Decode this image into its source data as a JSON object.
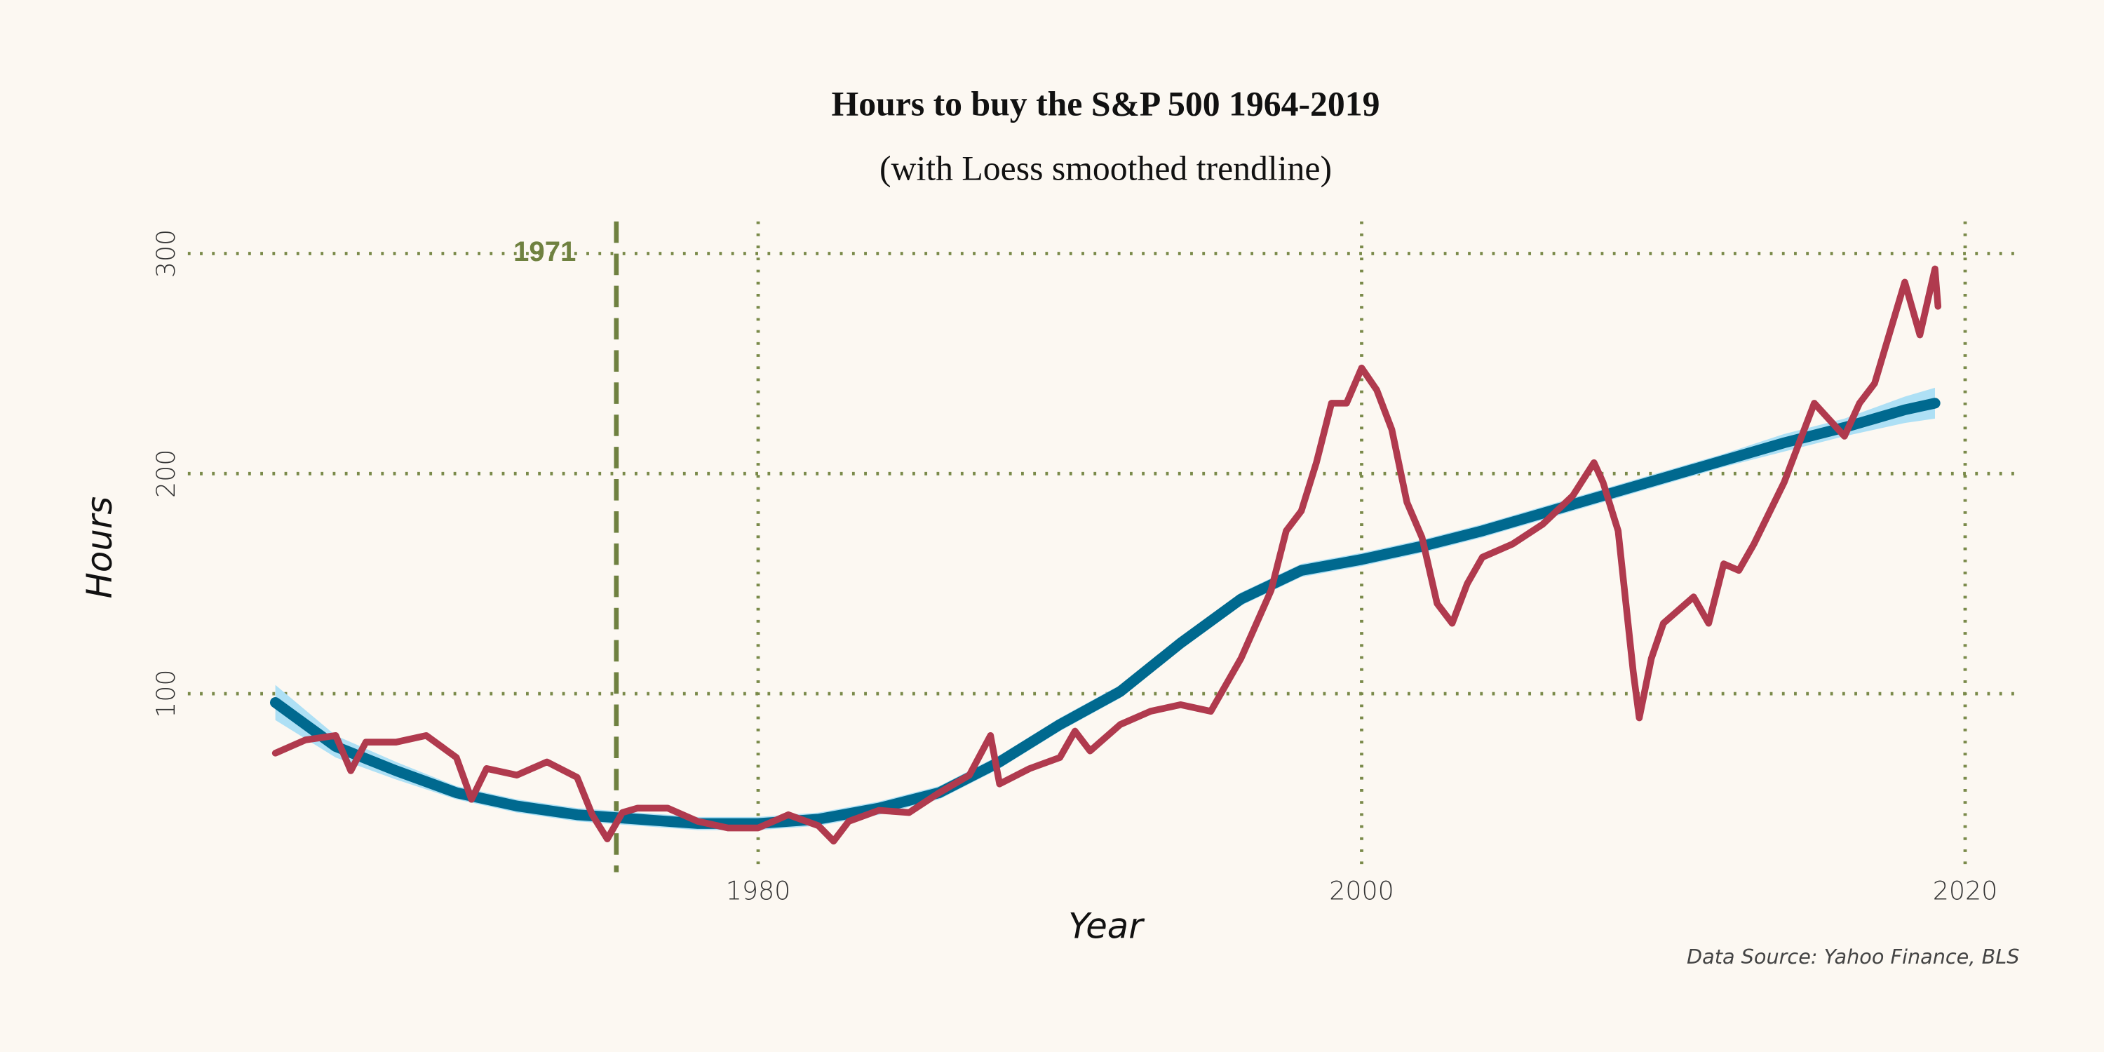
{
  "chart_data": {
    "type": "line",
    "title": "Hours to buy the S&P 500 1964-2019",
    "subtitle": "(with Loess smoothed trendline)",
    "x_label": "Year",
    "y_label": "Hours",
    "caption": "Data Source: Yahoo Finance, BLS",
    "xlim": [
      1961.1,
      2021.8
    ],
    "ylim": [
      18.9,
      314.6
    ],
    "xticks": [
      1980,
      2000,
      2020
    ],
    "yticks": [
      100,
      200,
      300
    ],
    "grid": true,
    "annotation": {
      "label": "1971",
      "x": 1975.3,
      "color": "#6f8140"
    },
    "band": {
      "color": "#aee0f5",
      "x": [
        1964,
        1966,
        1968,
        1970,
        1972,
        1974,
        1976,
        1978,
        1980,
        1982,
        1984,
        1986,
        1988,
        1990,
        1992,
        1994,
        1996,
        1998,
        2000,
        2002,
        2004,
        2006,
        2008,
        2010,
        2012,
        2014,
        2016,
        2018,
        2019
      ],
      "upper": [
        104,
        81,
        69,
        58,
        52,
        48,
        46,
        44,
        44,
        46,
        51,
        58,
        72,
        89,
        104,
        126,
        146,
        159,
        164,
        170,
        177,
        185,
        193,
        201,
        209,
        218,
        225,
        235,
        239
      ],
      "lower": [
        88,
        71,
        61,
        52,
        46,
        42,
        40,
        38,
        38,
        40,
        45,
        52,
        66,
        83,
        98,
        120,
        140,
        153,
        158,
        164,
        171,
        179,
        187,
        195,
        203,
        210,
        217,
        223,
        225
      ]
    },
    "series": [
      {
        "name": "Hours",
        "color": "#b03a4e",
        "x": [
          1964,
          1965,
          1966,
          1966.5,
          1967,
          1968,
          1969,
          1970,
          1970.5,
          1971,
          1972,
          1973,
          1974,
          1974.5,
          1975,
          1975.5,
          1976,
          1977,
          1978,
          1979,
          1980,
          1981,
          1982,
          1982.5,
          1983,
          1984,
          1985,
          1986,
          1987,
          1987.7,
          1988,
          1989,
          1990,
          1990.5,
          1991,
          1992,
          1993,
          1994,
          1995,
          1996,
          1997,
          1997.5,
          1998,
          1998.5,
          1999,
          1999.5,
          2000,
          2000.5,
          2001,
          2001.5,
          2002,
          2002.5,
          2003,
          2003.5,
          2004,
          2005,
          2006,
          2007,
          2007.7,
          2008,
          2008.5,
          2009,
          2009.2,
          2009.6,
          2010,
          2011,
          2011.5,
          2012,
          2012.5,
          2013,
          2014,
          2015,
          2016,
          2016.5,
          2017,
          2018,
          2018.5,
          2019,
          2019.1
        ],
        "values": [
          73,
          79,
          81,
          65,
          78,
          78,
          81,
          71,
          52,
          66,
          63,
          69,
          62,
          45,
          34,
          46,
          48,
          48,
          42,
          39,
          39,
          45,
          40,
          33,
          42,
          47,
          46,
          55,
          63,
          81,
          59,
          66,
          71,
          83,
          74,
          86,
          92,
          95,
          92,
          116,
          147,
          174,
          183,
          205,
          232,
          232,
          248,
          238,
          220,
          187,
          171,
          141,
          132,
          150,
          162,
          168,
          177,
          190,
          205,
          196,
          174,
          110,
          89,
          116,
          132,
          144,
          132,
          159,
          156,
          168,
          196,
          232,
          217,
          232,
          241,
          287,
          263,
          293,
          276
        ]
      },
      {
        "name": "Loess trend",
        "color": "#00698f",
        "x": [
          1964,
          1966,
          1968,
          1970,
          1972,
          1974,
          1976,
          1978,
          1980,
          1982,
          1984,
          1986,
          1988,
          1990,
          1992,
          1994,
          1996,
          1998,
          2000,
          2002,
          2004,
          2006,
          2008,
          2010,
          2012,
          2014,
          2016,
          2018,
          2019
        ],
        "values": [
          96,
          76,
          65,
          55,
          49,
          45,
          43,
          41,
          41,
          43,
          48,
          55,
          69,
          86,
          101,
          123,
          143,
          156,
          161,
          167,
          174,
          182,
          190,
          198,
          206,
          214,
          221,
          229,
          232
        ]
      }
    ]
  }
}
